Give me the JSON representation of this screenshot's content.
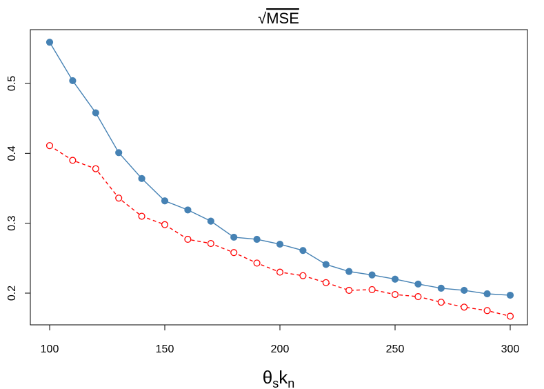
{
  "chart_data": {
    "type": "line",
    "title_prefix": "√",
    "title_main": "MSE",
    "xlabel_base": "θ",
    "xlabel_sub1": "s",
    "xlabel_mid": "k",
    "xlabel_sub2": "n",
    "ylabel": "",
    "x": [
      100,
      110,
      120,
      130,
      140,
      150,
      160,
      170,
      180,
      190,
      200,
      210,
      220,
      230,
      240,
      250,
      260,
      270,
      280,
      290,
      300
    ],
    "xlim": [
      100,
      300
    ],
    "ylim": [
      0.15,
      0.57
    ],
    "x_ticks": [
      100,
      150,
      200,
      250,
      300
    ],
    "x_tick_labels": [
      "100",
      "150",
      "200",
      "250",
      "300"
    ],
    "y_ticks": [
      0.2,
      0.3,
      0.4,
      0.5
    ],
    "y_tick_labels": [
      "0.2",
      "0.3",
      "0.4",
      "0.5"
    ],
    "grid": false,
    "series": [
      {
        "color": "#4682B4",
        "line_style": "solid",
        "marker": "filled-circle",
        "values": [
          0.559,
          0.504,
          0.458,
          0.401,
          0.364,
          0.332,
          0.319,
          0.303,
          0.28,
          0.277,
          0.27,
          0.261,
          0.241,
          0.231,
          0.226,
          0.22,
          0.213,
          0.207,
          0.204,
          0.199,
          0.197
        ]
      },
      {
        "color": "#FF0000",
        "line_style": "dashed",
        "marker": "open-circle",
        "values": [
          0.411,
          0.39,
          0.378,
          0.336,
          0.31,
          0.298,
          0.277,
          0.271,
          0.258,
          0.243,
          0.23,
          0.225,
          0.215,
          0.204,
          0.205,
          0.198,
          0.195,
          0.187,
          0.18,
          0.175,
          0.167
        ]
      }
    ]
  }
}
